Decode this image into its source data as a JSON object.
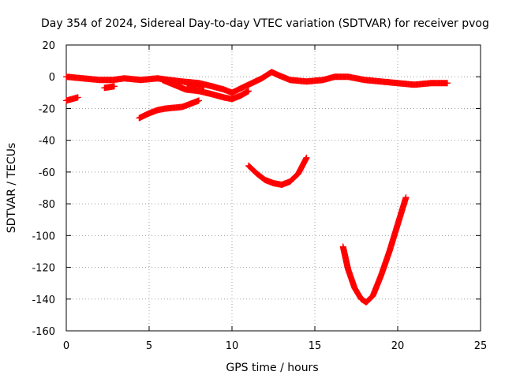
{
  "chart_data": {
    "type": "scatter",
    "title": "Day 354 of 2024, Sidereal Day-to-day VTEC variation (SDTVAR) for receiver pvog",
    "xlabel": "GPS time / hours",
    "ylabel": "SDTVAR / TECUs",
    "xlim": [
      0,
      25
    ],
    "ylim": [
      -160,
      20
    ],
    "xticks": [
      0,
      5,
      10,
      15,
      20,
      25
    ],
    "yticks": [
      20,
      0,
      -20,
      -40,
      -60,
      -80,
      -100,
      -120,
      -140,
      -160
    ],
    "grid": true,
    "marker": "plus",
    "series_color": "#ff0000",
    "series": [
      {
        "name": "main-band",
        "points": [
          [
            0,
            0
          ],
          [
            1,
            -1
          ],
          [
            2,
            -2
          ],
          [
            2.8,
            -2
          ],
          [
            3.5,
            -1
          ],
          [
            4.5,
            -2
          ],
          [
            5.5,
            -1
          ],
          [
            6.2,
            -2
          ],
          [
            7,
            -3
          ],
          [
            8,
            -4
          ],
          [
            8.8,
            -6
          ],
          [
            9.5,
            -8
          ],
          [
            10,
            -10
          ],
          [
            10.6,
            -7
          ],
          [
            11.2,
            -4
          ],
          [
            11.8,
            -1
          ],
          [
            12.4,
            3
          ],
          [
            12.8,
            1
          ],
          [
            13.5,
            -2
          ],
          [
            14.5,
            -3
          ],
          [
            15.5,
            -2
          ],
          [
            16.2,
            0
          ],
          [
            17,
            0
          ],
          [
            18,
            -2
          ],
          [
            19,
            -3
          ],
          [
            20,
            -4
          ],
          [
            21,
            -5
          ],
          [
            22,
            -4
          ],
          [
            23,
            -4
          ]
        ]
      },
      {
        "name": "lower-branch-a",
        "points": [
          [
            5.8,
            -2
          ],
          [
            6.5,
            -5
          ],
          [
            7.2,
            -8
          ],
          [
            8,
            -9
          ],
          [
            8.8,
            -11
          ],
          [
            9.5,
            -13
          ],
          [
            10,
            -14
          ],
          [
            10.5,
            -12
          ],
          [
            11,
            -9
          ]
        ]
      },
      {
        "name": "lower-branch-b",
        "points": [
          [
            7.3,
            -5
          ],
          [
            7.8,
            -6
          ],
          [
            8.3,
            -6
          ]
        ]
      },
      {
        "name": "short-left",
        "points": [
          [
            0,
            -15
          ],
          [
            0.7,
            -13
          ]
        ]
      },
      {
        "name": "short-mid",
        "points": [
          [
            2.3,
            -7
          ],
          [
            2.9,
            -6
          ]
        ]
      },
      {
        "name": "rising-arc",
        "points": [
          [
            4.4,
            -26
          ],
          [
            5,
            -23
          ],
          [
            5.5,
            -21
          ],
          [
            6,
            -20
          ],
          [
            6.5,
            -19.5
          ],
          [
            7,
            -19
          ],
          [
            7.5,
            -17
          ],
          [
            8,
            -15
          ]
        ]
      },
      {
        "name": "dip-arc",
        "points": [
          [
            11,
            -56
          ],
          [
            11.5,
            -61
          ],
          [
            12,
            -65
          ],
          [
            12.5,
            -67
          ],
          [
            13,
            -68
          ],
          [
            13.5,
            -66
          ],
          [
            14,
            -61
          ],
          [
            14.5,
            -51
          ]
        ]
      },
      {
        "name": "deep-arc",
        "points": [
          [
            16.7,
            -107
          ],
          [
            17,
            -121
          ],
          [
            17.4,
            -133
          ],
          [
            17.8,
            -140
          ],
          [
            18.1,
            -142
          ],
          [
            18.5,
            -138
          ],
          [
            19,
            -125
          ],
          [
            19.5,
            -110
          ],
          [
            20,
            -93
          ],
          [
            20.5,
            -76
          ]
        ]
      }
    ]
  }
}
